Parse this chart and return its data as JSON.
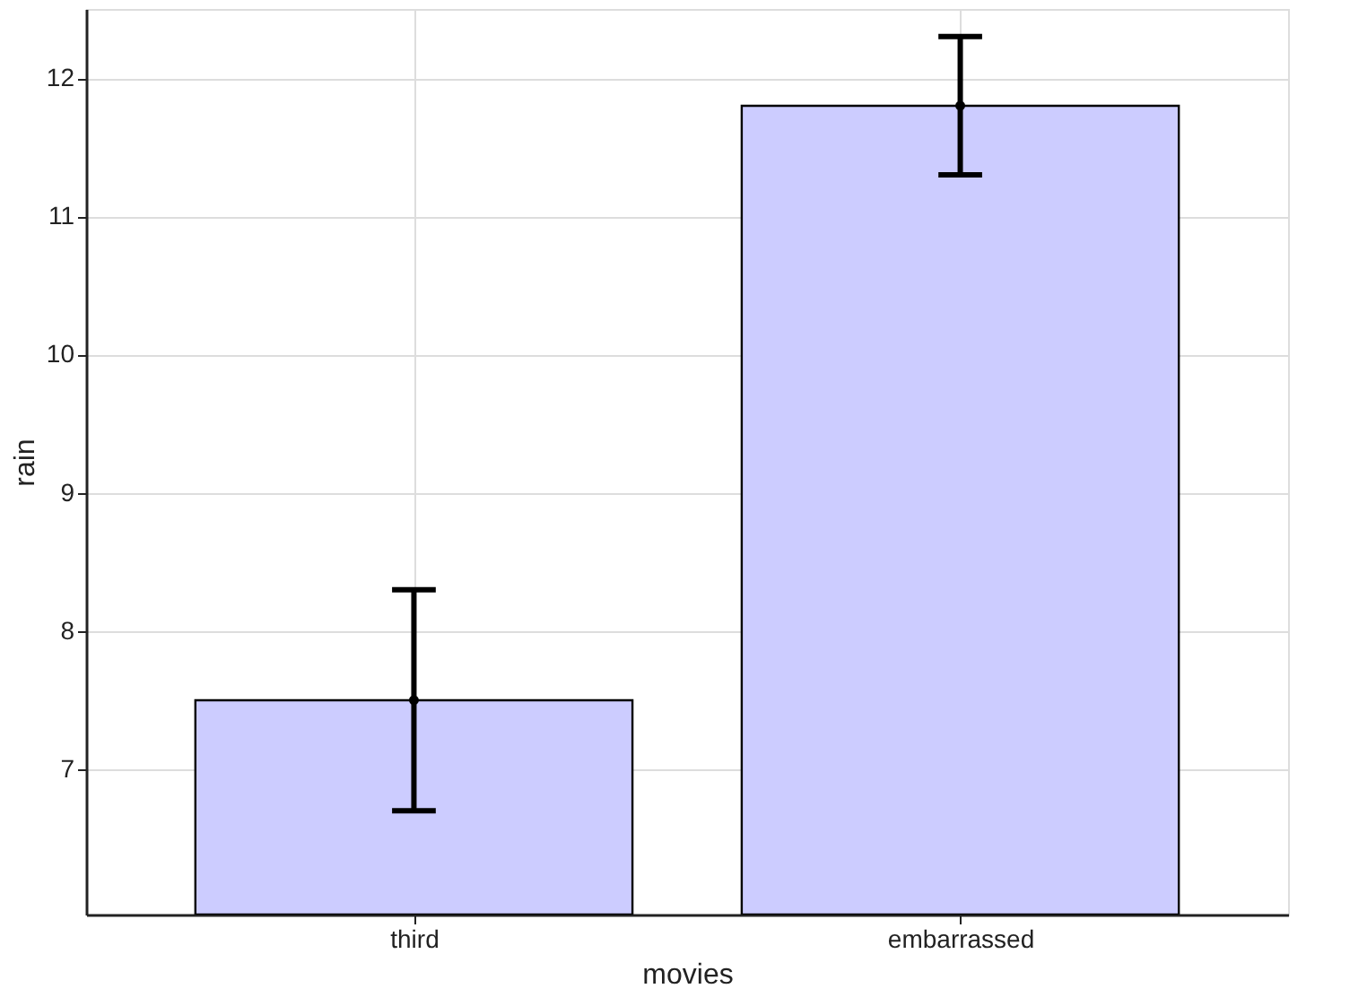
{
  "chart_data": {
    "type": "bar",
    "xlabel": "movies",
    "ylabel": "rain",
    "categories": [
      "third",
      "embarrassed"
    ],
    "series": [
      {
        "color": "#ccccff",
        "values": [
          7.5,
          11.8
        ],
        "errors": [
          0.8,
          0.5
        ]
      },
      {
        "type": "scatter",
        "color": "#000000",
        "marker": "circle",
        "x": [
          "third",
          "embarrassed"
        ],
        "values": [
          7.5,
          11.8
        ]
      }
    ],
    "ylim": [
      5.95,
      12.5
    ],
    "yticks": [
      7,
      8,
      9,
      10,
      11,
      12
    ],
    "grid": true
  }
}
